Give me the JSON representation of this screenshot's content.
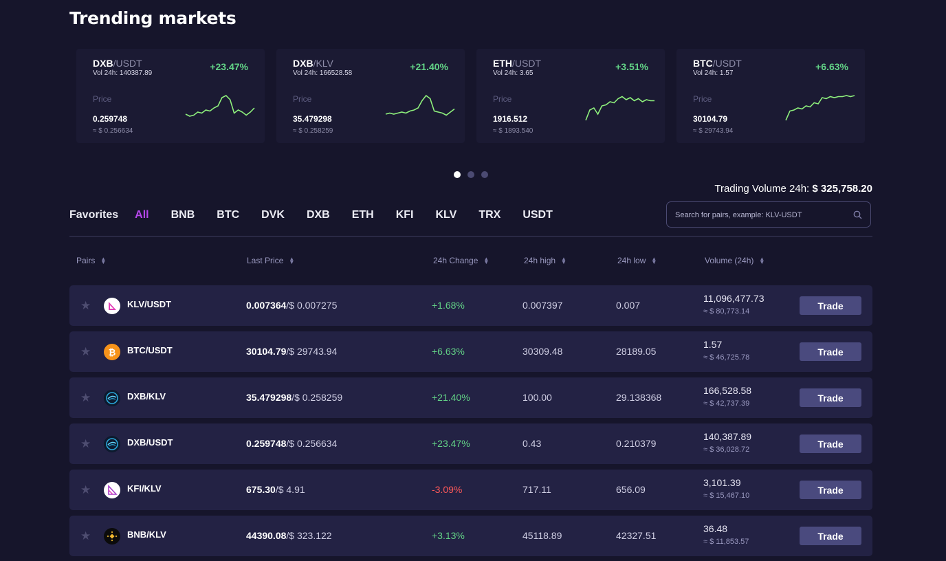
{
  "title": "Trending markets",
  "cards": [
    {
      "base": "DXB",
      "quote": "/USDT",
      "vol": "Vol 24h: 140387.89",
      "change": "+23.47%",
      "price_label": "Price",
      "price": "0.259748",
      "usd": "≈ $ 0.256634",
      "spark": [
        18,
        20,
        19,
        16,
        17,
        14,
        15,
        12,
        10,
        2,
        0,
        4,
        17,
        14,
        16,
        19,
        16,
        12
      ]
    },
    {
      "base": "DXB",
      "quote": "/KLV",
      "vol": "Vol 24h: 166528.58",
      "change": "+21.40%",
      "price_label": "Price",
      "price": "35.479298",
      "usd": "≈ $ 0.258259",
      "spark": [
        18,
        17,
        18,
        17,
        16,
        17,
        15,
        14,
        12,
        5,
        0,
        3,
        15,
        16,
        17,
        19,
        16,
        13
      ]
    },
    {
      "base": "ETH",
      "quote": "/USDT",
      "vol": "Vol 24h: 3.65",
      "change": "+3.51%",
      "price_label": "Price",
      "price": "1916.512",
      "usd": "≈ $ 1893.540",
      "spark": [
        24,
        14,
        12,
        18,
        10,
        9,
        6,
        7,
        3,
        1,
        4,
        2,
        5,
        3,
        6,
        4,
        5,
        5
      ]
    },
    {
      "base": "BTC",
      "quote": "/USDT",
      "vol": "Vol 24h: 1.57",
      "change": "+6.63%",
      "price_label": "Price",
      "price": "30104.79",
      "usd": "≈ $ 29743.94",
      "spark": [
        24,
        15,
        14,
        12,
        13,
        10,
        11,
        7,
        8,
        2,
        3,
        1,
        2,
        1,
        1,
        0,
        1,
        0
      ]
    }
  ],
  "carousel_dots": 3,
  "trading_volume": {
    "label": "Trading Volume 24h:",
    "value": "$ 325,758.20"
  },
  "tabs": [
    "Favorites",
    "All",
    "BNB",
    "BTC",
    "DVK",
    "DXB",
    "ETH",
    "KFI",
    "KLV",
    "TRX",
    "USDT"
  ],
  "active_tab": "All",
  "search": {
    "placeholder": "Search for pairs, example: KLV-USDT"
  },
  "columns": [
    "Pairs",
    "Last Price",
    "24h Change",
    "24h high",
    "24h low",
    "Volume (24h)"
  ],
  "trade_label": "Trade",
  "rows": [
    {
      "pair": "KLV/USDT",
      "icon": "klv-icon",
      "last": "0.007364",
      "last_usd": "/$ 0.007275",
      "change": "+1.68%",
      "dir": "up",
      "high": "0.007397",
      "low": "0.007",
      "volume": "11,096,477.73",
      "volume_usd": "≈ $ 80,773.14"
    },
    {
      "pair": "BTC/USDT",
      "icon": "btc-icon",
      "last": "30104.79",
      "last_usd": "/$ 29743.94",
      "change": "+6.63%",
      "dir": "up",
      "high": "30309.48",
      "low": "28189.05",
      "volume": "1.57",
      "volume_usd": "≈ $ 46,725.78"
    },
    {
      "pair": "DXB/KLV",
      "icon": "dxb-icon",
      "last": "35.479298",
      "last_usd": "/$ 0.258259",
      "change": "+21.40%",
      "dir": "up",
      "high": "100.00",
      "low": "29.138368",
      "volume": "166,528.58",
      "volume_usd": "≈ $ 42,737.39"
    },
    {
      "pair": "DXB/USDT",
      "icon": "dxb-icon",
      "last": "0.259748",
      "last_usd": "/$ 0.256634",
      "change": "+23.47%",
      "dir": "up",
      "high": "0.43",
      "low": "0.210379",
      "volume": "140,387.89",
      "volume_usd": "≈ $ 36,028.72"
    },
    {
      "pair": "KFI/KLV",
      "icon": "kfi-icon",
      "last": "675.30",
      "last_usd": "/$ 4.91",
      "change": "-3.09%",
      "dir": "down",
      "high": "717.11",
      "low": "656.09",
      "volume": "3,101.39",
      "volume_usd": "≈ $ 15,467.10"
    },
    {
      "pair": "BNB/KLV",
      "icon": "bnb-icon",
      "last": "44390.08",
      "last_usd": "/$ 323.122",
      "change": "+3.13%",
      "dir": "up",
      "high": "45118.89",
      "low": "42327.51",
      "volume": "36.48",
      "volume_usd": "≈ $ 11,853.57"
    }
  ],
  "colors": {
    "background": "#16152b",
    "card": "#1b1a33",
    "row": "#232244",
    "accent": "#b446ea",
    "up": "#62d286",
    "down": "#ff5959",
    "trade_button": "#4a4a7e"
  }
}
